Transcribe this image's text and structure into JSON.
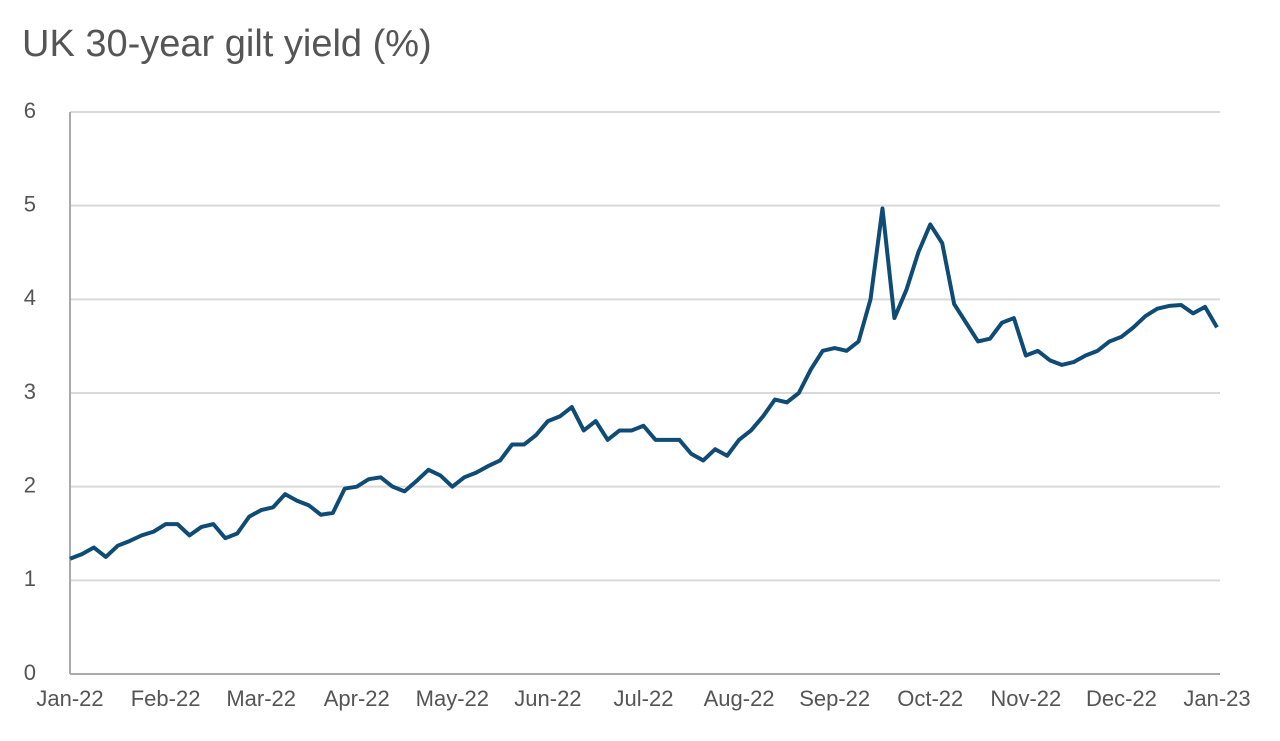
{
  "chart_data": {
    "type": "line",
    "title": "UK 30-year gilt yield (%)",
    "categories": [
      "Jan-22",
      null,
      null,
      null,
      null,
      null,
      null,
      null,
      "Feb-22",
      null,
      null,
      null,
      null,
      null,
      null,
      null,
      "Mar-22",
      null,
      null,
      null,
      null,
      null,
      null,
      null,
      "Apr-22",
      null,
      null,
      null,
      null,
      null,
      null,
      null,
      "May-22",
      null,
      null,
      null,
      null,
      null,
      null,
      null,
      "Jun-22",
      null,
      null,
      null,
      null,
      null,
      null,
      null,
      "Jul-22",
      null,
      null,
      null,
      null,
      null,
      null,
      null,
      "Aug-22",
      null,
      null,
      null,
      null,
      null,
      null,
      null,
      "Sep-22",
      null,
      null,
      null,
      null,
      null,
      null,
      null,
      "Oct-22",
      null,
      null,
      null,
      null,
      null,
      null,
      null,
      "Nov-22",
      null,
      null,
      null,
      null,
      null,
      null,
      null,
      "Dec-22",
      null,
      null,
      null,
      null,
      null,
      null,
      null,
      "Jan-23"
    ],
    "series": [
      {
        "name": "UK 30-year gilt yield",
        "color": "#0f4c75",
        "values": [
          1.23,
          1.28,
          1.35,
          1.25,
          1.37,
          1.42,
          1.48,
          1.52,
          1.6,
          1.6,
          1.48,
          1.57,
          1.6,
          1.45,
          1.5,
          1.68,
          1.75,
          1.78,
          1.92,
          1.85,
          1.8,
          1.7,
          1.72,
          1.98,
          2.0,
          2.08,
          2.1,
          2.0,
          1.95,
          2.06,
          2.18,
          2.12,
          2.0,
          2.1,
          2.15,
          2.22,
          2.28,
          2.45,
          2.45,
          2.55,
          2.7,
          2.75,
          2.85,
          2.6,
          2.7,
          2.5,
          2.6,
          2.6,
          2.65,
          2.5,
          2.5,
          2.5,
          2.35,
          2.28,
          2.4,
          2.33,
          2.5,
          2.6,
          2.75,
          2.93,
          2.9,
          3.0,
          3.25,
          3.45,
          3.48,
          3.45,
          3.55,
          4.0,
          4.97,
          3.8,
          4.1,
          4.5,
          4.8,
          4.6,
          3.95,
          3.75,
          3.55,
          3.58,
          3.75,
          3.8,
          3.4,
          3.45,
          3.35,
          3.3,
          3.33,
          3.4,
          3.45,
          3.55,
          3.6,
          3.7,
          3.82,
          3.9,
          3.93,
          3.94,
          3.85,
          3.92,
          3.7
        ]
      }
    ],
    "ylim": [
      0,
      6
    ],
    "yticks": [
      0,
      1,
      2,
      3,
      4,
      5,
      6
    ],
    "grid": true
  }
}
